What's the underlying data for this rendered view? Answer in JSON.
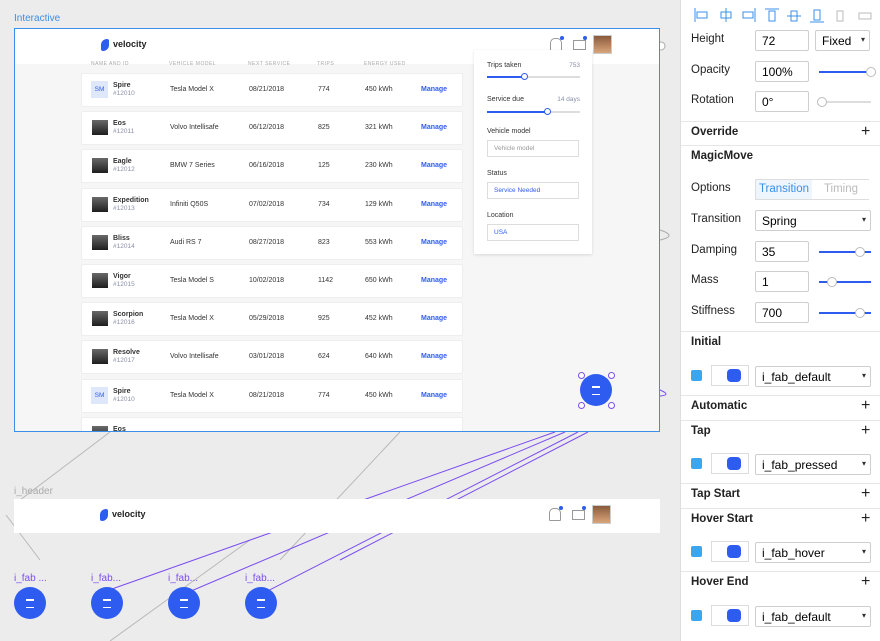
{
  "canvas": {
    "frame_label": "Interactive",
    "header_label": "i_header",
    "fab_labels": [
      "i_fab ...",
      "i_fab...",
      "i_fab...",
      "i_fab..."
    ]
  },
  "app": {
    "logo": "velocity",
    "columns": [
      "NAME AND ID",
      "VEHICLE MODEL",
      "NEXT SERVICE",
      "TRIPS",
      "ENERGY USED"
    ],
    "rows": [
      {
        "initials": "SM",
        "name": "Spire",
        "id": "#12010",
        "model": "Tesla Model X",
        "date": "08/21/2018",
        "trips": "774",
        "energy": "450 kWh",
        "action": "Manage"
      },
      {
        "name": "Eos",
        "id": "#12011",
        "model": "Volvo Intellisafe",
        "date": "06/12/2018",
        "trips": "825",
        "energy": "321 kWh",
        "action": "Manage"
      },
      {
        "name": "Eagle",
        "id": "#12012",
        "model": "BMW 7 Series",
        "date": "06/16/2018",
        "trips": "125",
        "energy": "230 kWh",
        "action": "Manage"
      },
      {
        "name": "Expedition",
        "id": "#12013",
        "model": "Infiniti Q50S",
        "date": "07/02/2018",
        "trips": "734",
        "energy": "129 kWh",
        "action": "Manage"
      },
      {
        "name": "Bliss",
        "id": "#12014",
        "model": "Audi RS 7",
        "date": "08/27/2018",
        "trips": "823",
        "energy": "553 kWh",
        "action": "Manage"
      },
      {
        "name": "Vigor",
        "id": "#12015",
        "model": "Tesla Model S",
        "date": "10/02/2018",
        "trips": "1142",
        "energy": "650 kWh",
        "action": "Manage"
      },
      {
        "name": "Scorpion",
        "id": "#12016",
        "model": "Tesla Model X",
        "date": "05/29/2018",
        "trips": "925",
        "energy": "452 kWh",
        "action": "Manage"
      },
      {
        "name": "Resolve",
        "id": "#12017",
        "model": "Volvo Intellisafe",
        "date": "03/01/2018",
        "trips": "624",
        "energy": "640 kWh",
        "action": "Manage"
      },
      {
        "initials": "SM",
        "name": "Spire",
        "id": "#12010",
        "model": "Tesla Model X",
        "date": "08/21/2018",
        "trips": "774",
        "energy": "450 kWh",
        "action": "Manage"
      },
      {
        "name": "Eos"
      }
    ],
    "filters": {
      "trips_label": "Trips taken",
      "trips_value": "753",
      "service_label": "Service due",
      "service_value": "14 days",
      "model_label": "Vehicle model",
      "model_placeholder": "Vehicle model",
      "status_label": "Status",
      "status_value": "Service Needed",
      "location_label": "Location",
      "location_value": "USA"
    }
  },
  "panel": [
    {
      "label": "Height",
      "input": "72",
      "select": "Fixed"
    },
    {
      "label": "Opacity",
      "input": "100%"
    },
    {
      "label": "Rotation",
      "input": "0°"
    },
    {
      "heading": "Override"
    },
    {
      "heading": "MagicMove"
    },
    {
      "label": "Options",
      "tabs": [
        "Transition",
        "Timing"
      ]
    },
    {
      "label": "Transition",
      "select": "Spring"
    },
    {
      "label": "Damping",
      "input": "35"
    },
    {
      "label": "Mass",
      "input": "1"
    },
    {
      "label": "Stiffness",
      "input": "700"
    },
    {
      "heading": "Initial"
    },
    {
      "state": "i_fab_default"
    },
    {
      "heading": "Automatic"
    },
    {
      "heading": "Tap"
    },
    {
      "state": "i_fab_pressed"
    },
    {
      "heading": "Tap Start"
    },
    {
      "heading": "Hover Start"
    },
    {
      "state": "i_fab_hover"
    },
    {
      "heading": "Hover End"
    },
    {
      "state": "i_fab_default"
    }
  ]
}
